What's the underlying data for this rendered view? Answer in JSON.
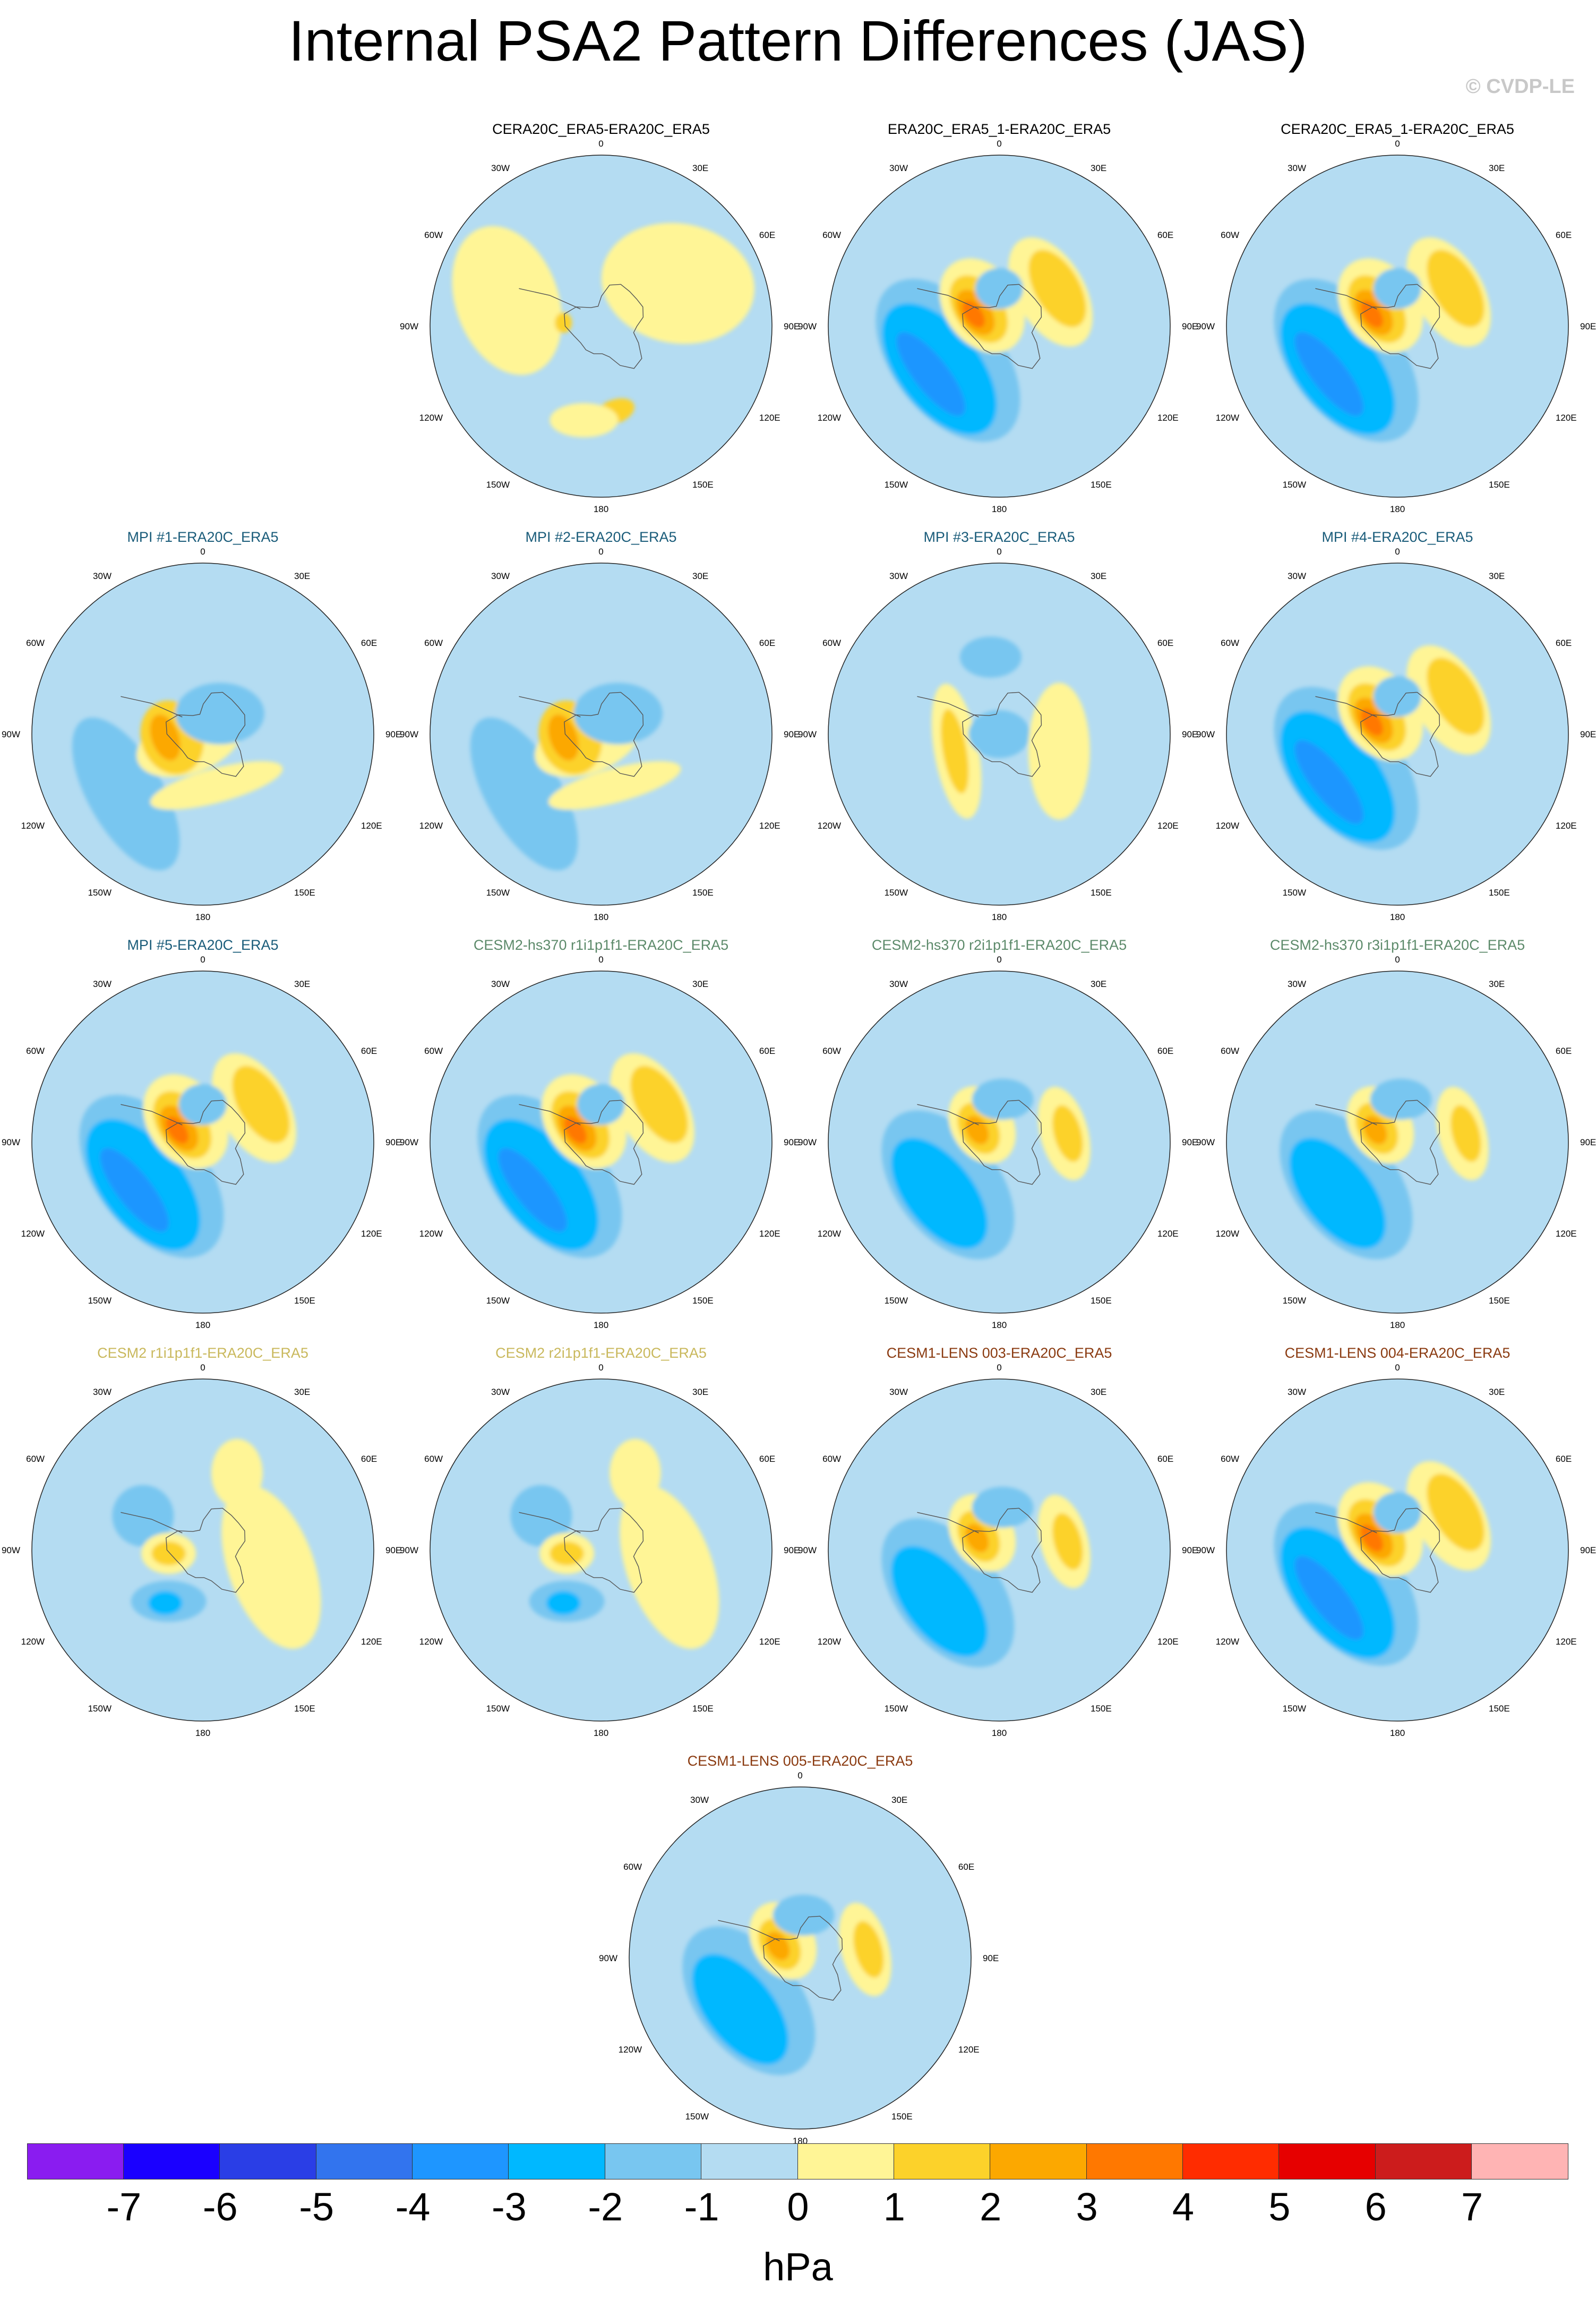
{
  "title": "Internal PSA2 Pattern Differences (JAS)",
  "watermark": "© CVDP-LE",
  "lon_labels": [
    "0",
    "30E",
    "60E",
    "90E",
    "120E",
    "150E",
    "180",
    "150W",
    "120W",
    "90W",
    "60W",
    "30W"
  ],
  "colors": {
    "obs_title": "#000000",
    "mpi_title": "#1a5c7a",
    "cesm2hs_title": "#5c8a6a",
    "cesm2_title": "#c9b85c",
    "cesm1_title": "#8a3a10"
  },
  "panels": [
    {
      "title": "CERA20C_ERA5-ERA20C_ERA5",
      "group": "obs",
      "pattern": "weak"
    },
    {
      "title": "ERA20C_ERA5_1-ERA20C_ERA5",
      "group": "obs",
      "pattern": "strong"
    },
    {
      "title": "CERA20C_ERA5_1-ERA20C_ERA5",
      "group": "obs",
      "pattern": "strong"
    },
    {
      "title": "MPI #1-ERA20C_ERA5",
      "group": "mpi",
      "pattern": "mpi"
    },
    {
      "title": "MPI #2-ERA20C_ERA5",
      "group": "mpi",
      "pattern": "mpi"
    },
    {
      "title": "MPI #3-ERA20C_ERA5",
      "group": "mpi",
      "pattern": "mpi3"
    },
    {
      "title": "MPI #4-ERA20C_ERA5",
      "group": "mpi",
      "pattern": "strong"
    },
    {
      "title": "MPI #5-ERA20C_ERA5",
      "group": "mpi",
      "pattern": "strong"
    },
    {
      "title": "CESM2-hs370 r1i1p1f1-ERA20C_ERA5",
      "group": "cesm2hs",
      "pattern": "strong"
    },
    {
      "title": "CESM2-hs370 r2i1p1f1-ERA20C_ERA5",
      "group": "cesm2hs",
      "pattern": "medium"
    },
    {
      "title": "CESM2-hs370 r3i1p1f1-ERA20C_ERA5",
      "group": "cesm2hs",
      "pattern": "medium"
    },
    {
      "title": "CESM2 r1i1p1f1-ERA20C_ERA5",
      "group": "cesm2",
      "pattern": "weak2"
    },
    {
      "title": "CESM2 r2i1p1f1-ERA20C_ERA5",
      "group": "cesm2",
      "pattern": "weak2"
    },
    {
      "title": "CESM1-LENS 003-ERA20C_ERA5",
      "group": "cesm1",
      "pattern": "medium"
    },
    {
      "title": "CESM1-LENS 004-ERA20C_ERA5",
      "group": "cesm1",
      "pattern": "strong"
    },
    {
      "title": "CESM1-LENS 005-ERA20C_ERA5",
      "group": "cesm1",
      "pattern": "medium"
    }
  ],
  "colorbar": {
    "colors": [
      "#8a1cf0",
      "#1a00ff",
      "#2a3ee6",
      "#3274ee",
      "#1e96ff",
      "#00b8ff",
      "#78c6f0",
      "#b4dcf2",
      "#fff596",
      "#fcd22a",
      "#fca800",
      "#ff7800",
      "#ff2c00",
      "#e60000",
      "#cc1c1c",
      "#ffb4b4"
    ],
    "ticks": [
      "-7",
      "-6",
      "-5",
      "-4",
      "-3",
      "-2",
      "-1",
      "0",
      "1",
      "2",
      "3",
      "4",
      "5",
      "6",
      "7"
    ],
    "units": "hPa"
  }
}
